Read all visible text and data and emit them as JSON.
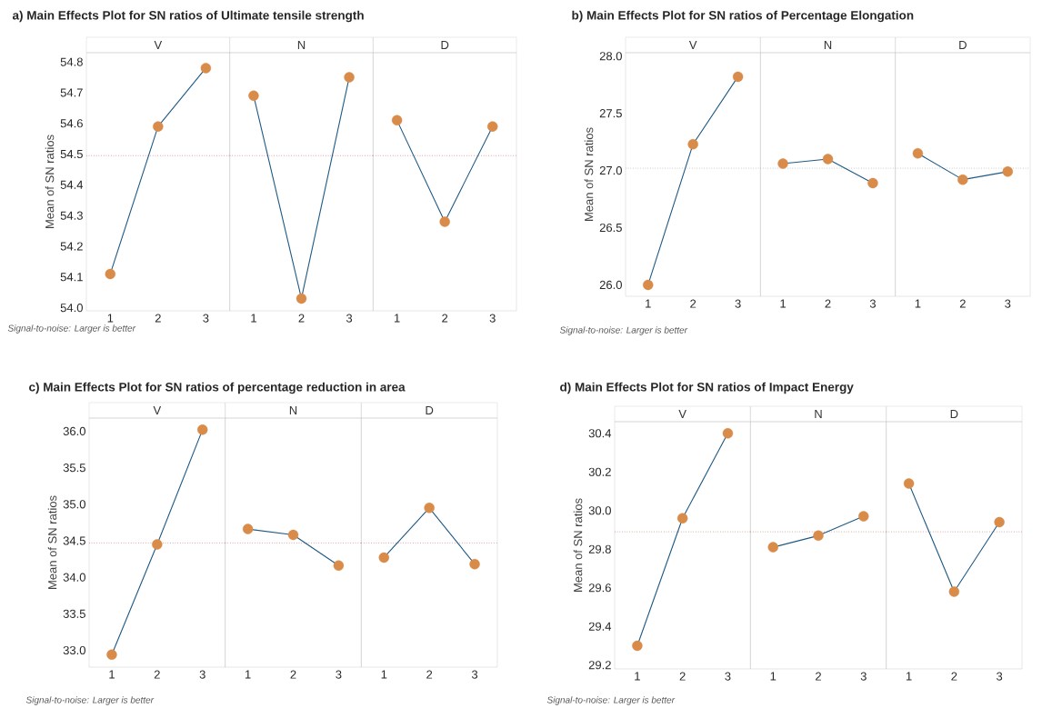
{
  "chart_data": [
    {
      "type": "line",
      "title": "a) Main Effects Plot for SN ratios of Ultimate tensile strength",
      "subtitle": "V",
      "ylabel": "Mean of SN ratios",
      "categories": [
        "1",
        "2",
        "3"
      ],
      "values": [
        54.11,
        54.59,
        54.78
      ],
      "color": "#1f5a85",
      "colors": [
        "#d98b4a",
        "#d98b4a",
        "#d98b4a"
      ],
      "ylim": [
        53.99,
        54.83
      ],
      "yticks": [
        {
          "value": 54.0,
          "label": "54.0"
        },
        54.1,
        54.2,
        54.3,
        54.4,
        54.5,
        54.6,
        54.7,
        54.8
      ],
      "marker": "circle",
      "line_style": "solid",
      "ref_lines": [
        {
          "axis": "y",
          "value": 54.495,
          "color": "#c0504d",
          "line_style": "dotted"
        }
      ],
      "annotations": [
        "Signal-to-noise: Larger is better"
      ]
    },
    {
      "type": "line",
      "subtitle": "N",
      "categories": [
        "1",
        "2",
        "3"
      ],
      "values": [
        54.69,
        54.03,
        54.75
      ],
      "color": "#1f5a85",
      "colors": [
        "#d98b4a",
        "#d98b4a",
        "#d98b4a"
      ],
      "ylim": [
        53.99,
        54.83
      ],
      "tick_labels": "x",
      "marker": "circle",
      "line_style": "solid",
      "ref_lines": [
        {
          "axis": "y",
          "value": 54.495,
          "color": "#c0504d",
          "line_style": "dotted"
        }
      ]
    },
    {
      "type": "line",
      "subtitle": "D",
      "categories": [
        "1",
        "2",
        "3"
      ],
      "values": [
        54.61,
        54.28,
        54.59
      ],
      "color": "#1f5a85",
      "colors": [
        "#d98b4a",
        "#d98b4a",
        "#d98b4a"
      ],
      "ylim": [
        53.99,
        54.83
      ],
      "tick_labels": "x",
      "marker": "circle",
      "line_style": "solid",
      "ref_lines": [
        {
          "axis": "y",
          "value": 54.495,
          "color": "#c0504d",
          "line_style": "dotted"
        }
      ]
    },
    {
      "type": "line",
      "title": "b) Main Effects Plot for SN ratios of Percentage Elongation",
      "subtitle": "V",
      "ylabel": "Mean of SN ratios",
      "categories": [
        "1",
        "2",
        "3"
      ],
      "values": [
        26.0,
        27.23,
        27.82
      ],
      "color": "#1f5a85",
      "colors": [
        "#d98b4a",
        "#d98b4a",
        "#d98b4a"
      ],
      "ylim": [
        25.9,
        28.03
      ],
      "yticks": [
        {
          "value": 26.0,
          "label": "26.0"
        },
        26.5,
        {
          "value": 27.0,
          "label": "27.0"
        },
        27.5,
        {
          "value": 28.0,
          "label": "28.0"
        }
      ],
      "marker": "circle",
      "line_style": "solid",
      "ref_lines": [
        {
          "axis": "y",
          "value": 27.02,
          "color": "#999999",
          "line_style": "dotted"
        }
      ],
      "annotations": [
        "Signal-to-noise: Larger is better"
      ]
    },
    {
      "type": "line",
      "subtitle": "N",
      "categories": [
        "1",
        "2",
        "3"
      ],
      "values": [
        27.06,
        27.1,
        26.89
      ],
      "color": "#1f5a85",
      "colors": [
        "#d98b4a",
        "#d98b4a",
        "#d98b4a"
      ],
      "ylim": [
        25.9,
        28.03
      ],
      "tick_labels": "x",
      "marker": "circle",
      "line_style": "solid",
      "ref_lines": [
        {
          "axis": "y",
          "value": 27.02,
          "color": "#999999",
          "line_style": "dotted"
        }
      ]
    },
    {
      "type": "line",
      "subtitle": "D",
      "categories": [
        "1",
        "2",
        "3"
      ],
      "values": [
        27.15,
        26.92,
        26.99
      ],
      "color": "#1f5a85",
      "colors": [
        "#d98b4a",
        "#d98b4a",
        "#d98b4a"
      ],
      "ylim": [
        25.9,
        28.03
      ],
      "tick_labels": "x",
      "marker": "circle",
      "line_style": "solid",
      "ref_lines": [
        {
          "axis": "y",
          "value": 27.02,
          "color": "#999999",
          "line_style": "dotted"
        }
      ]
    },
    {
      "type": "line",
      "title": "c) Main Effects Plot for SN ratios of percentage reduction in area",
      "subtitle": "V",
      "ylabel": "Mean of SN ratios",
      "categories": [
        "1",
        "2",
        "3"
      ],
      "values": [
        32.94,
        34.45,
        36.02
      ],
      "color": "#1f5a85",
      "colors": [
        "#d98b4a",
        "#d98b4a",
        "#d98b4a"
      ],
      "ylim": [
        32.77,
        36.18
      ],
      "yticks": [
        {
          "value": 33.0,
          "label": "33.0"
        },
        33.5,
        {
          "value": 34.0,
          "label": "34.0"
        },
        34.5,
        {
          "value": 35.0,
          "label": "35.0"
        },
        35.5,
        {
          "value": 36.0,
          "label": "36.0"
        }
      ],
      "marker": "circle",
      "line_style": "solid",
      "ref_lines": [
        {
          "axis": "y",
          "value": 34.47,
          "color": "#c0504d",
          "line_style": "dotted"
        }
      ],
      "annotations": [
        "Signal-to-noise: Larger is better"
      ]
    },
    {
      "type": "line",
      "subtitle": "N",
      "categories": [
        "1",
        "2",
        "3"
      ],
      "values": [
        34.66,
        34.58,
        34.16
      ],
      "color": "#1f5a85",
      "colors": [
        "#d98b4a",
        "#d98b4a",
        "#d98b4a"
      ],
      "ylim": [
        32.77,
        36.18
      ],
      "tick_labels": "x",
      "marker": "circle",
      "line_style": "solid",
      "ref_lines": [
        {
          "axis": "y",
          "value": 34.47,
          "color": "#c0504d",
          "line_style": "dotted"
        }
      ]
    },
    {
      "type": "line",
      "subtitle": "D",
      "categories": [
        "1",
        "2",
        "3"
      ],
      "values": [
        34.27,
        34.95,
        34.18
      ],
      "color": "#1f5a85",
      "colors": [
        "#d98b4a",
        "#d98b4a",
        "#d98b4a"
      ],
      "ylim": [
        32.77,
        36.18
      ],
      "tick_labels": "x",
      "marker": "circle",
      "line_style": "solid",
      "ref_lines": [
        {
          "axis": "y",
          "value": 34.47,
          "color": "#c0504d",
          "line_style": "dotted"
        }
      ]
    },
    {
      "type": "line",
      "title": "d) Main Effects Plot for SN ratios of Impact Energy",
      "subtitle": "V",
      "ylabel": "Mean of SN ratios",
      "categories": [
        "1",
        "2",
        "3"
      ],
      "values": [
        29.3,
        29.96,
        30.4
      ],
      "color": "#1f5a85",
      "colors": [
        "#d98b4a",
        "#d98b4a",
        "#d98b4a"
      ],
      "ylim": [
        29.18,
        30.46
      ],
      "yticks": [
        29.2,
        29.4,
        29.6,
        29.8,
        {
          "value": 30.0,
          "label": "30.0"
        },
        30.2,
        30.4
      ],
      "marker": "circle",
      "line_style": "solid",
      "ref_lines": [
        {
          "axis": "y",
          "value": 29.89,
          "color": "#c0504d",
          "line_style": "dotted"
        }
      ],
      "annotations": [
        "Signal-to-noise: Larger is better"
      ]
    },
    {
      "type": "line",
      "subtitle": "N",
      "categories": [
        "1",
        "2",
        "3"
      ],
      "values": [
        29.81,
        29.87,
        29.97
      ],
      "color": "#1f5a85",
      "colors": [
        "#d98b4a",
        "#d98b4a",
        "#d98b4a"
      ],
      "ylim": [
        29.18,
        30.46
      ],
      "tick_labels": "x",
      "marker": "circle",
      "line_style": "solid",
      "ref_lines": [
        {
          "axis": "y",
          "value": 29.89,
          "color": "#c0504d",
          "line_style": "dotted"
        }
      ]
    },
    {
      "type": "line",
      "subtitle": "D",
      "categories": [
        "1",
        "2",
        "3"
      ],
      "values": [
        30.14,
        29.58,
        29.94
      ],
      "color": "#1f5a85",
      "colors": [
        "#d98b4a",
        "#d98b4a",
        "#d98b4a"
      ],
      "ylim": [
        29.18,
        30.46
      ],
      "tick_labels": "x",
      "marker": "circle",
      "line_style": "solid",
      "ref_lines": [
        {
          "axis": "y",
          "value": 29.89,
          "color": "#c0504d",
          "line_style": "dotted"
        }
      ]
    }
  ]
}
